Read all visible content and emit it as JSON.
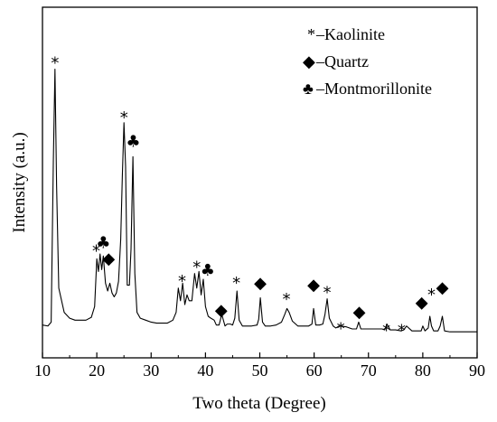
{
  "chart_data": {
    "type": "line",
    "xlabel": "Two theta (Degree)",
    "ylabel": "Intensity (a.u.)",
    "xlim": [
      10,
      90
    ],
    "x_ticks": [
      "10",
      "20",
      "30",
      "40",
      "50",
      "60",
      "70",
      "80",
      "90"
    ],
    "grid": false,
    "y_tick_labels": false,
    "legend_position": "top-right",
    "legend": [
      {
        "symbol": "*",
        "label": "–Kaolinite"
      },
      {
        "symbol": "◆",
        "label": "–Quartz"
      },
      {
        "symbol": "♣",
        "label": "–Montmorillonite"
      }
    ],
    "series": [
      {
        "x": [
          10.0,
          11.0,
          11.6,
          12.0,
          12.3,
          12.6,
          13.0,
          14.0,
          15.0,
          16.0,
          17.0,
          18.0,
          19.0,
          19.6,
          20.0,
          20.3,
          20.6,
          20.9,
          21.2,
          21.6,
          22.0,
          22.4,
          22.8,
          23.2,
          23.6,
          24.0,
          24.4,
          24.7,
          25.0,
          25.3,
          25.6,
          26.0,
          26.3,
          26.65,
          27.0,
          27.4,
          28.0,
          29.0,
          30.0,
          31.0,
          32.0,
          33.0,
          34.0,
          34.6,
          35.0,
          35.4,
          35.8,
          36.2,
          36.6,
          37.0,
          37.5,
          38.0,
          38.4,
          38.8,
          39.2,
          39.6,
          40.0,
          40.5,
          41.0,
          41.6,
          42.0,
          42.5,
          43.0,
          43.6,
          44.0,
          44.6,
          45.0,
          45.4,
          45.8,
          46.2,
          46.8,
          47.5,
          48.5,
          49.5,
          49.8,
          50.1,
          50.5,
          51.0,
          52.0,
          53.0,
          54.0,
          54.6,
          55.0,
          55.4,
          56.0,
          57.0,
          58.0,
          59.0,
          59.6,
          59.9,
          60.3,
          61.0,
          61.6,
          62.0,
          62.4,
          62.8,
          63.5,
          64.0,
          64.6,
          65.0,
          66.0,
          67.0,
          67.8,
          68.2,
          68.6,
          69.5,
          70.5,
          71.5,
          72.5,
          73.0,
          73.4,
          74.0,
          75.0,
          76.0,
          76.5,
          77.0,
          78.0,
          79.0,
          79.7,
          80.0,
          80.4,
          81.0,
          81.3,
          81.6,
          82.0,
          82.8,
          83.2,
          83.6,
          84.0,
          85.0,
          86.0,
          87.0,
          88.0,
          89.0,
          90.0
        ],
        "y": [
          17,
          16,
          20,
          185,
          280,
          160,
          55,
          30,
          24,
          22,
          22,
          22,
          25,
          36,
          85,
          72,
          90,
          74,
          88,
          60,
          52,
          60,
          50,
          46,
          50,
          62,
          105,
          170,
          225,
          180,
          58,
          58,
          95,
          190,
          70,
          30,
          24,
          22,
          20,
          19,
          19,
          19,
          22,
          30,
          55,
          42,
          60,
          38,
          48,
          42,
          42,
          70,
          55,
          72,
          48,
          64,
          36,
          26,
          24,
          22,
          17,
          17,
          28,
          16,
          18,
          18,
          17,
          24,
          52,
          22,
          16,
          16,
          16,
          17,
          23,
          45,
          20,
          16,
          16,
          17,
          20,
          28,
          34,
          30,
          21,
          16,
          16,
          16,
          18,
          34,
          17,
          17,
          18,
          28,
          44,
          24,
          16,
          14,
          16,
          16,
          15,
          13,
          13,
          20,
          13,
          13,
          13,
          13,
          13,
          12,
          18,
          12,
          12,
          11,
          12,
          16,
          11,
          11,
          11,
          16,
          11,
          14,
          26,
          16,
          11,
          11,
          16,
          26,
          11,
          10,
          10,
          10,
          10,
          10,
          10
        ]
      }
    ],
    "markers": [
      {
        "symbol": "*",
        "x": 12.3,
        "y": 292
      },
      {
        "symbol": "*",
        "x": 19.9,
        "y": 99
      },
      {
        "symbol": "♣",
        "x": 21.2,
        "y": 96
      },
      {
        "symbol": "◆",
        "x": 22.2,
        "y": 80
      },
      {
        "symbol": "*",
        "x": 25.0,
        "y": 236
      },
      {
        "symbol": "♣",
        "x": 26.7,
        "y": 200
      },
      {
        "symbol": "*",
        "x": 35.7,
        "y": 68
      },
      {
        "symbol": "*",
        "x": 38.4,
        "y": 82
      },
      {
        "symbol": "♣",
        "x": 40.4,
        "y": 68
      },
      {
        "symbol": "◆",
        "x": 42.9,
        "y": 27
      },
      {
        "symbol": "*",
        "x": 45.7,
        "y": 66
      },
      {
        "symbol": "◆",
        "x": 50.1,
        "y": 55
      },
      {
        "symbol": "*",
        "x": 54.9,
        "y": 49
      },
      {
        "symbol": "◆",
        "x": 59.9,
        "y": 53
      },
      {
        "symbol": "*",
        "x": 62.4,
        "y": 56
      },
      {
        "symbol": "*",
        "x": 64.9,
        "y": 19
      },
      {
        "symbol": "◆",
        "x": 68.3,
        "y": 25
      },
      {
        "symbol": "*",
        "x": 73.3,
        "y": 17
      },
      {
        "symbol": "*",
        "x": 76.1,
        "y": 17
      },
      {
        "symbol": "◆",
        "x": 79.8,
        "y": 35
      },
      {
        "symbol": "*",
        "x": 81.6,
        "y": 54
      },
      {
        "symbol": "◆",
        "x": 83.6,
        "y": 50
      }
    ]
  }
}
